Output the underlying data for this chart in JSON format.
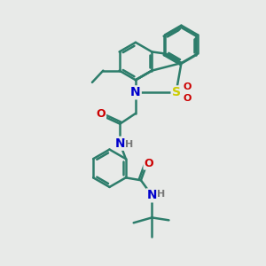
{
  "background_color": "#e8eae8",
  "bond_color": "#2d7d6b",
  "bond_width": 1.8,
  "atom_colors": {
    "N": "#0000cc",
    "O": "#cc0000",
    "S": "#cccc00",
    "H": "#777777",
    "C": "#2d7d6b"
  },
  "font_size": 8,
  "figsize": [
    3.0,
    3.0
  ],
  "dpi": 100
}
